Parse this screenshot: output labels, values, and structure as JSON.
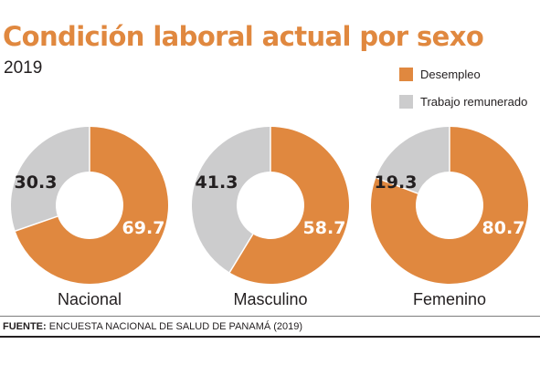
{
  "colors": {
    "desempleo": "#E0883F",
    "trabajo": "#CCCCCD",
    "title": "#E0883F",
    "text": "#231F20"
  },
  "chart_data": {
    "type": "pie",
    "variant": "donut",
    "title": "Condición laboral actual por sexo",
    "subtitle": "2019",
    "legend_position": "top-right",
    "series_names": [
      "Desempleo",
      "Trabajo remunerado"
    ],
    "charts": [
      {
        "category": "Nacional",
        "desempleo": 69.7,
        "desempleo_label": "69.7",
        "trabajo": 30.3,
        "trabajo_label": "30.3"
      },
      {
        "category": "Masculino",
        "desempleo": 58.7,
        "desempleo_label": "58.7",
        "trabajo": 41.3,
        "trabajo_label": "41.3"
      },
      {
        "category": "Femenino",
        "desempleo": 80.7,
        "desempleo_label": "80.7",
        "trabajo": 19.3,
        "trabajo_label": "19.3"
      }
    ]
  },
  "legend": [
    {
      "label": "Desempleo",
      "color": "#E0883F"
    },
    {
      "label": "Trabajo remunerado",
      "color": "#CCCCCD"
    }
  ],
  "source": {
    "prefix": "FUENTE:",
    "text": " ENCUESTA NACIONAL DE SALUD DE PANAMÁ (2019)"
  }
}
